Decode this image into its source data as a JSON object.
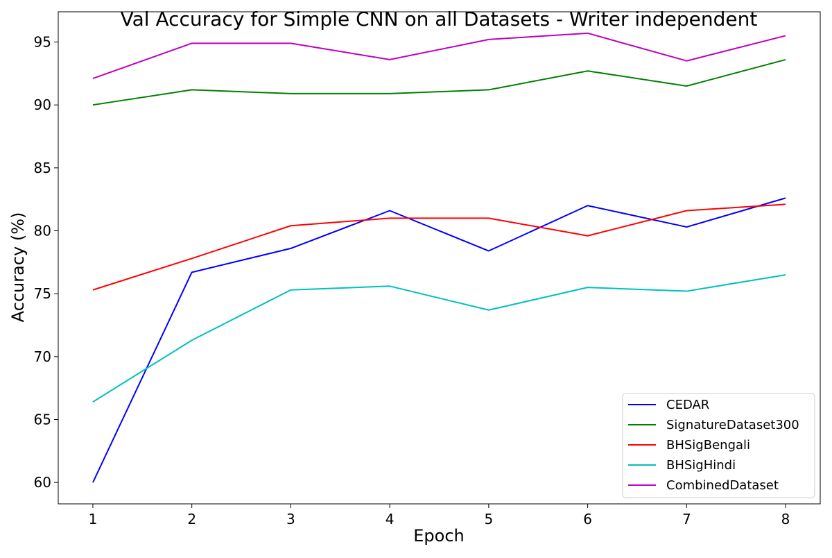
{
  "chart_data": {
    "type": "line",
    "title": "Val Accuracy for Simple CNN on all Datasets - Writer independent",
    "xlabel": "Epoch",
    "ylabel": "Accuracy (%)",
    "x": [
      1,
      2,
      3,
      4,
      5,
      6,
      7,
      8
    ],
    "xticks": [
      "1",
      "2",
      "3",
      "4",
      "5",
      "6",
      "7",
      "8"
    ],
    "yticks": [
      "60",
      "65",
      "70",
      "75",
      "80",
      "85",
      "90",
      "95"
    ],
    "xlim": [
      0.65,
      8.35
    ],
    "ylim": [
      58.3,
      97.4
    ],
    "grid": false,
    "legend_position": "lower right",
    "series": [
      {
        "name": "CEDAR",
        "color": "#0000ff",
        "values": [
          60.0,
          76.7,
          78.6,
          81.6,
          78.4,
          82.0,
          80.3,
          82.6
        ]
      },
      {
        "name": "SignatureDataset300",
        "color": "#008000",
        "values": [
          90.0,
          91.2,
          90.9,
          90.9,
          91.2,
          92.7,
          91.5,
          93.6
        ]
      },
      {
        "name": "BHSigBengali",
        "color": "#ff0000",
        "values": [
          75.3,
          77.8,
          80.4,
          81.0,
          81.0,
          79.6,
          81.6,
          82.1
        ]
      },
      {
        "name": "BHSigHindi",
        "color": "#00bfbf",
        "values": [
          66.4,
          71.3,
          75.3,
          75.6,
          73.7,
          75.5,
          75.2,
          76.5
        ]
      },
      {
        "name": "CombinedDataset",
        "color": "#bf00bf",
        "values": [
          92.1,
          94.9,
          94.9,
          93.6,
          95.2,
          95.7,
          93.5,
          95.5
        ]
      }
    ]
  }
}
